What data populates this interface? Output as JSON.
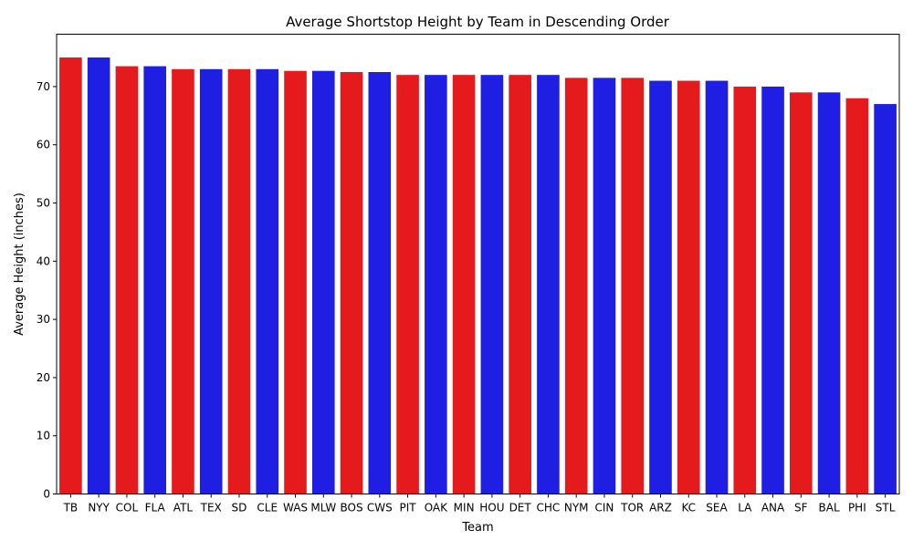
{
  "chart_data": {
    "type": "bar",
    "title": "Average Shortstop Height by Team in Descending Order",
    "xlabel": "Team",
    "ylabel": "Average Height (inches)",
    "ylim": [
      0,
      79
    ],
    "yticks": [
      0,
      10,
      20,
      30,
      40,
      50,
      60,
      70
    ],
    "grid": false,
    "legend": "none",
    "bar_colors": [
      "#e41a1c",
      "#1f1fe4"
    ],
    "categories": [
      "TB",
      "NYY",
      "COL",
      "FLA",
      "ATL",
      "TEX",
      "SD",
      "CLE",
      "WAS",
      "MLW",
      "BOS",
      "CWS",
      "PIT",
      "OAK",
      "MIN",
      "HOU",
      "DET",
      "CHC",
      "NYM",
      "CIN",
      "TOR",
      "ARZ",
      "KC",
      "SEA",
      "LA",
      "ANA",
      "SF",
      "BAL",
      "PHI",
      "STL"
    ],
    "values": [
      75,
      75,
      73.5,
      73.5,
      73,
      73,
      73,
      73,
      72.7,
      72.7,
      72.5,
      72.5,
      72,
      72,
      72,
      72,
      72,
      72,
      71.5,
      71.5,
      71.5,
      71,
      71,
      71,
      70,
      70,
      69,
      69,
      68,
      67
    ]
  }
}
